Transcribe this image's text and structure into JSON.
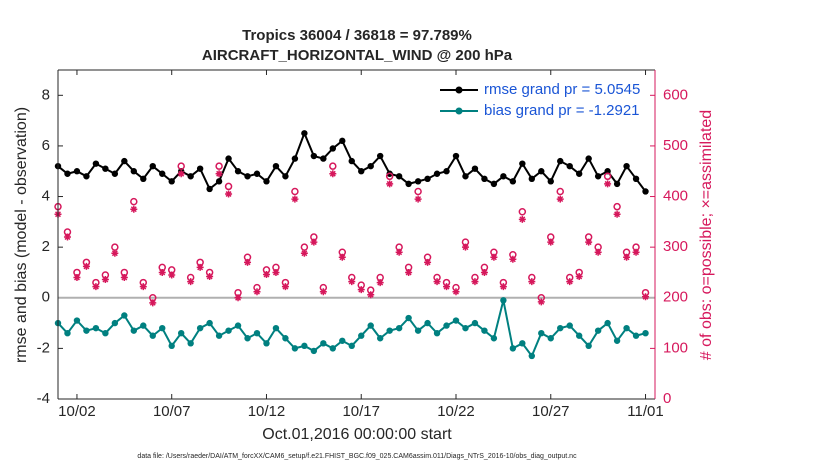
{
  "chart_data": {
    "type": "line",
    "title": "Tropics 36004 / 36818 = 97.789%",
    "subtitle": "AIRCRAFT_HORIZONTAL_WIND @ 200 hPa",
    "x_label": "Oct.01,2016 00:00:00 start",
    "y_label": "rmse and bias (model - observation)",
    "y2_label": "# of obs: o=possible; ×=assimilated",
    "footnote": "data file: /Users/raeder/DAI/ATM_forcXX/CAM6_setup/f.e21.FHIST_BGC.f09_025.CAM6assim.011/Diags_NTrS_2016-10/obs_diag_output.nc",
    "legend_position": "upper right",
    "legend_text_color": "#1a55d6",
    "zero_line": true,
    "xlim": [
      0,
      31.5
    ],
    "xticks": [
      {
        "value": 1,
        "label": "10/02"
      },
      {
        "value": 6,
        "label": "10/07"
      },
      {
        "value": 11,
        "label": "10/12"
      },
      {
        "value": 16,
        "label": "10/17"
      },
      {
        "value": 21,
        "label": "10/22"
      },
      {
        "value": 26,
        "label": "10/27"
      },
      {
        "value": 31,
        "label": "11/01"
      }
    ],
    "ylim": [
      -4,
      9
    ],
    "yticks": [
      -4,
      -2,
      0,
      2,
      4,
      6,
      8
    ],
    "y2lim": [
      0,
      650
    ],
    "y2ticks": [
      0,
      100,
      200,
      300,
      400,
      500,
      600
    ],
    "x": [
      0,
      0.5,
      1,
      1.5,
      2,
      2.5,
      3,
      3.5,
      4,
      4.5,
      5,
      5.5,
      6,
      6.5,
      7,
      7.5,
      8,
      8.5,
      9,
      9.5,
      10,
      10.5,
      11,
      11.5,
      12,
      12.5,
      13,
      13.5,
      14,
      14.5,
      15,
      15.5,
      16,
      16.5,
      17,
      17.5,
      18,
      18.5,
      19,
      19.5,
      20,
      20.5,
      21,
      21.5,
      22,
      22.5,
      23,
      23.5,
      24,
      24.5,
      25,
      25.5,
      26,
      26.5,
      27,
      27.5,
      28,
      28.5,
      29,
      29.5,
      30,
      30.5,
      31
    ],
    "series": [
      {
        "name": "rmse grand pr = 5.0545",
        "color": "#000000",
        "marker": "dot",
        "values": [
          5.2,
          4.9,
          5.0,
          4.8,
          5.3,
          5.1,
          4.9,
          5.4,
          5.0,
          4.7,
          5.2,
          4.9,
          4.6,
          5.0,
          4.8,
          5.1,
          4.3,
          4.6,
          5.5,
          5.0,
          4.8,
          4.9,
          4.6,
          5.2,
          4.8,
          5.5,
          6.5,
          5.6,
          5.5,
          5.9,
          6.2,
          5.4,
          5.0,
          5.2,
          5.6,
          4.9,
          4.8,
          4.5,
          4.6,
          4.7,
          4.9,
          5.0,
          5.6,
          4.8,
          5.1,
          4.7,
          4.5,
          4.8,
          4.6,
          5.3,
          4.7,
          5.0,
          4.6,
          5.4,
          5.2,
          4.9,
          5.5,
          4.8,
          5.0,
          4.5,
          5.2,
          4.7,
          4.2
        ]
      },
      {
        "name": "bias grand pr = -1.2921",
        "color": "#008080",
        "marker": "dot",
        "values": [
          -1.0,
          -1.4,
          -0.9,
          -1.3,
          -1.2,
          -1.4,
          -1.0,
          -0.7,
          -1.3,
          -1.1,
          -1.5,
          -1.2,
          -1.9,
          -1.4,
          -1.8,
          -1.2,
          -1.0,
          -1.5,
          -1.3,
          -1.1,
          -1.6,
          -1.4,
          -1.8,
          -1.2,
          -1.6,
          -2.0,
          -1.9,
          -2.1,
          -1.8,
          -2.0,
          -1.7,
          -1.9,
          -1.5,
          -1.1,
          -1.6,
          -1.3,
          -1.2,
          -0.8,
          -1.3,
          -1.0,
          -1.4,
          -1.1,
          -0.9,
          -1.2,
          -1.0,
          -1.3,
          -1.6,
          -0.1,
          -2.0,
          -1.8,
          -2.3,
          -1.4,
          -1.6,
          -1.2,
          -1.1,
          -1.5,
          -1.9,
          -1.3,
          -1.0,
          -1.7,
          -1.2,
          -1.5,
          -1.4
        ]
      },
      {
        "color": "#d6185c",
        "marker": "circle",
        "axis": "y2",
        "values": [
          380,
          330,
          250,
          270,
          230,
          245,
          300,
          250,
          390,
          230,
          200,
          260,
          255,
          460,
          240,
          270,
          250,
          460,
          420,
          210,
          280,
          220,
          255,
          260,
          230,
          410,
          300,
          320,
          220,
          460,
          290,
          240,
          225,
          215,
          240,
          440,
          300,
          260,
          410,
          280,
          240,
          230,
          220,
          310,
          240,
          260,
          290,
          230,
          285,
          370,
          240,
          200,
          320,
          410,
          240,
          250,
          320,
          300,
          440,
          380,
          290,
          300,
          210
        ]
      },
      {
        "color": "#d6185c",
        "marker": "asterisk",
        "axis": "y2",
        "values": [
          365,
          320,
          240,
          262,
          222,
          236,
          288,
          240,
          375,
          222,
          190,
          250,
          245,
          445,
          232,
          260,
          242,
          445,
          405,
          200,
          270,
          212,
          246,
          250,
          222,
          395,
          288,
          310,
          212,
          445,
          280,
          232,
          216,
          206,
          230,
          425,
          290,
          250,
          395,
          270,
          232,
          222,
          212,
          300,
          232,
          250,
          280,
          222,
          276,
          355,
          232,
          192,
          310,
          395,
          232,
          242,
          310,
          290,
          425,
          365,
          280,
          290,
          202
        ]
      }
    ]
  }
}
